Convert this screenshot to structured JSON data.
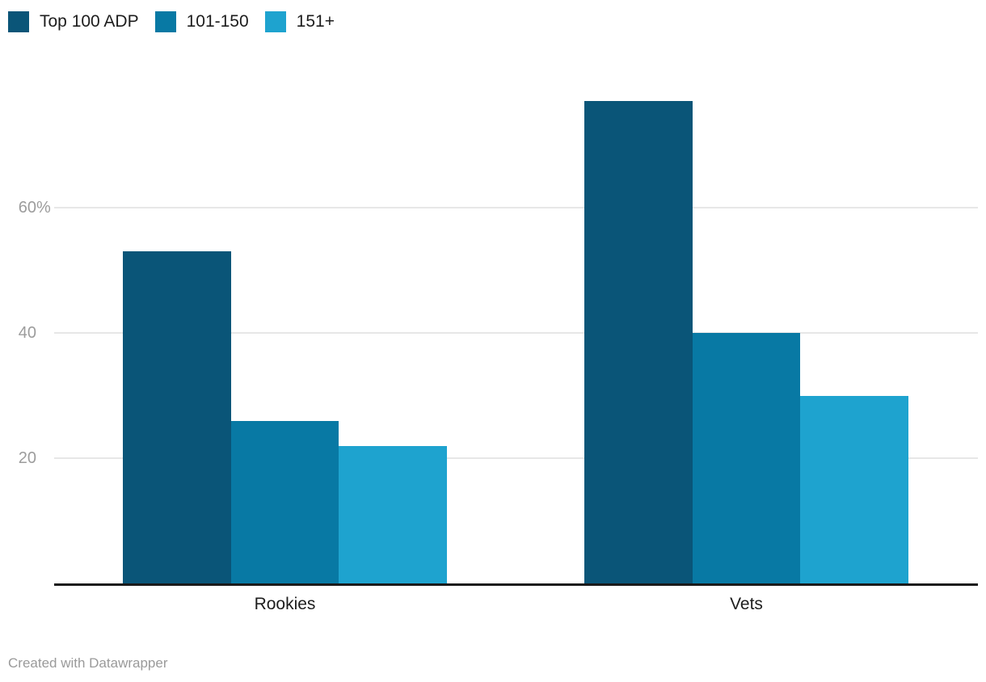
{
  "footer": {
    "credit": "Created with Datawrapper"
  },
  "chart_data": {
    "type": "bar",
    "title": "",
    "categories": [
      "Rookies",
      "Vets"
    ],
    "series": [
      {
        "name": "Top 100 ADP",
        "color": "#0a5578",
        "values": [
          53,
          77
        ]
      },
      {
        "name": "101-150",
        "color": "#0879a4",
        "values": [
          26,
          40
        ]
      },
      {
        "name": "151+",
        "color": "#1ea3cf",
        "values": [
          22,
          30
        ]
      }
    ],
    "unit": "%",
    "xlabel": "",
    "ylabel": "",
    "ylim": [
      0,
      80
    ],
    "y_ticks": [
      {
        "value": 20,
        "label": "20",
        "suffix": ""
      },
      {
        "value": 40,
        "label": "40",
        "suffix": ""
      },
      {
        "value": 60,
        "label": "60",
        "suffix": "%"
      }
    ],
    "grid": "horizontal",
    "legend_position": "top-left"
  },
  "colors": {
    "background": "#ffffff",
    "gridline": "#e7e7e7",
    "axis_line": "#1a1a1a",
    "tick_label": "#9c9c9c",
    "category_label": "#1d1d1d",
    "legend_label": "#1d1d1d",
    "footer_text": "#9a9a9a"
  }
}
